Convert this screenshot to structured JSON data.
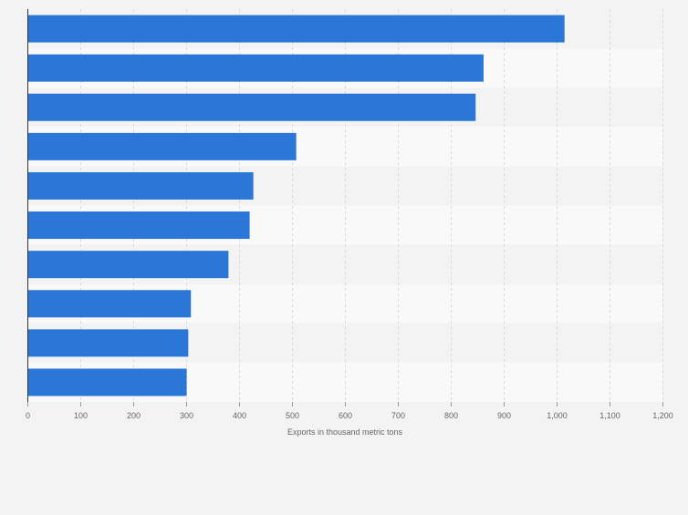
{
  "chart_data": {
    "type": "bar",
    "orientation": "horizontal",
    "categories": [
      "",
      "",
      "",
      "",
      "",
      "",
      "",
      "",
      "",
      ""
    ],
    "values": [
      1015,
      862,
      847,
      508,
      427,
      420,
      380,
      309,
      304,
      301
    ],
    "xlabel": "Exports in thousand metric tons",
    "ylabel": "",
    "xlim": [
      0,
      1200
    ],
    "xticks": [
      0,
      100,
      200,
      300,
      400,
      500,
      600,
      700,
      800,
      900,
      1000,
      1100,
      1200
    ],
    "xtick_labels": [
      "0",
      "100",
      "200",
      "300",
      "400",
      "500",
      "600",
      "700",
      "800",
      "900",
      "1,000",
      "1,100",
      "1,200"
    ],
    "grid": true,
    "legend": "none",
    "colors": {
      "bar": "#2a77d8",
      "band_dark": "#f3f3f3",
      "band_light": "#f9f9f9",
      "grid": "#d9d9d9",
      "axis": "#333333",
      "tick_text": "#666666",
      "background": "#f3f3f3"
    }
  }
}
